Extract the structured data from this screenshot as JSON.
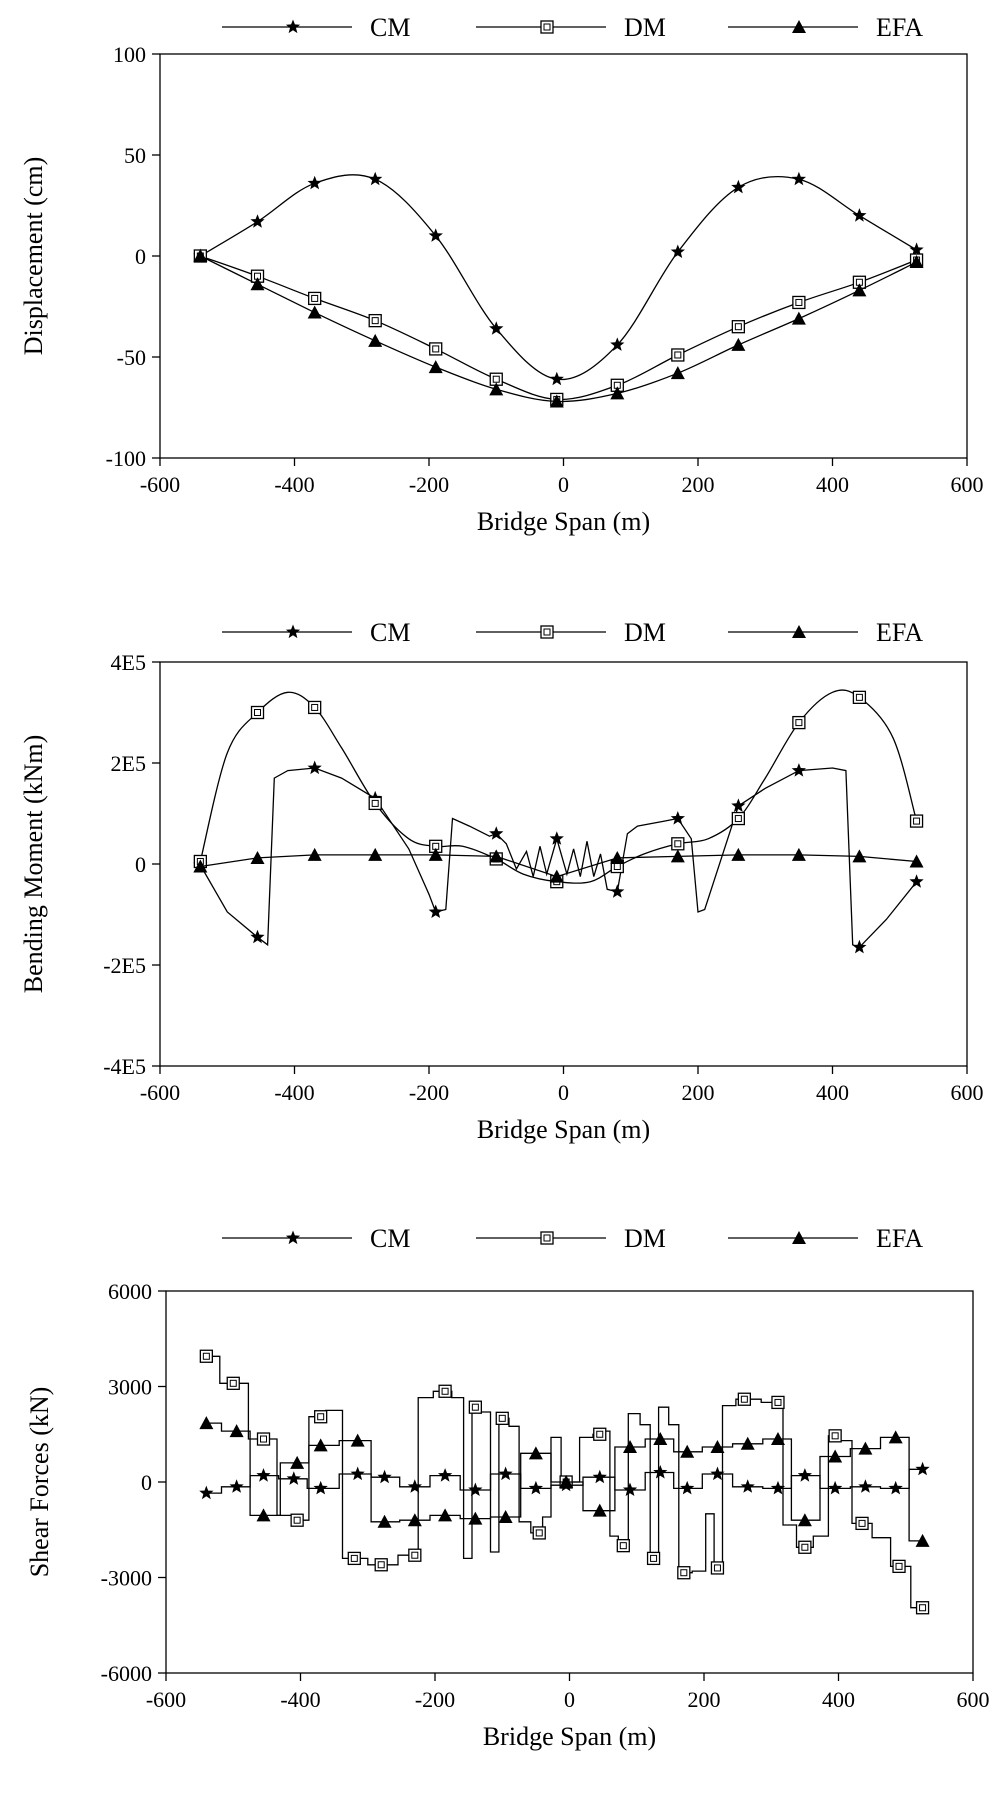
{
  "chart_data": [
    {
      "type": "line",
      "id": "displacement",
      "xlabel": "Bridge Span (m)",
      "ylabel": "Displacement (cm)",
      "xlim": [
        -600,
        600
      ],
      "ylim": [
        -100,
        100
      ],
      "xticks": [
        "-600",
        "-400",
        "-200",
        "0",
        "200",
        "400",
        "600"
      ],
      "yticks": [
        "100",
        "50",
        "0",
        "-50",
        "-100"
      ],
      "legend_position": "top",
      "series": [
        {
          "name": "CM",
          "marker": "star",
          "x": [
            -540,
            -455,
            -370,
            -280,
            -190,
            -100,
            -10,
            80,
            170,
            260,
            350,
            440,
            525
          ],
          "y": [
            0,
            17,
            36,
            38,
            10,
            -36,
            -61,
            -44,
            2,
            34,
            38,
            20,
            3
          ]
        },
        {
          "name": "DM",
          "marker": "square",
          "x": [
            -540,
            -455,
            -370,
            -280,
            -190,
            -100,
            -10,
            80,
            170,
            260,
            350,
            440,
            525
          ],
          "y": [
            0,
            -10,
            -21,
            -32,
            -46,
            -61,
            -71,
            -64,
            -49,
            -35,
            -23,
            -13,
            -2
          ]
        },
        {
          "name": "EFA",
          "marker": "triangle",
          "x": [
            -540,
            -455,
            -370,
            -280,
            -190,
            -100,
            -10,
            80,
            170,
            260,
            350,
            440,
            525
          ],
          "y": [
            0,
            -14,
            -28,
            -42,
            -55,
            -66,
            -72,
            -68,
            -58,
            -44,
            -31,
            -17,
            -3
          ]
        }
      ]
    },
    {
      "type": "line",
      "id": "bending-moment",
      "xlabel": "Bridge Span (m)",
      "ylabel": "Bending Moment (kNm)",
      "xlim": [
        -600,
        600
      ],
      "ylim": [
        -400000,
        400000
      ],
      "xticks": [
        "-600",
        "-400",
        "-200",
        "0",
        "200",
        "400",
        "600"
      ],
      "yticks": [
        "4E5",
        "2E5",
        "0",
        "-2E5",
        "-4E5"
      ],
      "legend_position": "top",
      "series": [
        {
          "name": "CM",
          "marker": "star",
          "x": [
            -540,
            -500,
            -455,
            -440,
            -430,
            -410,
            -370,
            -330,
            -280,
            -230,
            -200,
            -190,
            -175,
            -165,
            -140,
            -110,
            -100,
            -85,
            -70,
            -55,
            -45,
            -35,
            -25,
            -10,
            5,
            15,
            25,
            35,
            45,
            55,
            65,
            80,
            95,
            110,
            150,
            170,
            190,
            200,
            210,
            260,
            300,
            350,
            400,
            420,
            430,
            440,
            480,
            525
          ],
          "y": [
            -2000,
            -95000,
            -145000,
            -160000,
            170000,
            185000,
            190000,
            170000,
            130000,
            30000,
            -60000,
            -95000,
            -90000,
            90000,
            75000,
            55000,
            60000,
            40000,
            -10000,
            25000,
            -25000,
            35000,
            -20000,
            50000,
            -20000,
            30000,
            -25000,
            45000,
            -25000,
            20000,
            -50000,
            -55000,
            60000,
            75000,
            85000,
            90000,
            50000,
            -95000,
            -90000,
            115000,
            150000,
            185000,
            190000,
            185000,
            -160000,
            -165000,
            -110000,
            -35000
          ]
        },
        {
          "name": "DM",
          "marker": "square",
          "x": [
            -540,
            -500,
            -455,
            -410,
            -370,
            -330,
            -280,
            -230,
            -190,
            -150,
            -100,
            -60,
            -10,
            40,
            80,
            120,
            170,
            215,
            260,
            300,
            350,
            400,
            440,
            490,
            525
          ],
          "y": [
            5000,
            220000,
            300000,
            340000,
            310000,
            230000,
            120000,
            50000,
            35000,
            35000,
            10000,
            -20000,
            -35000,
            -35000,
            -5000,
            20000,
            40000,
            50000,
            90000,
            170000,
            280000,
            340000,
            330000,
            250000,
            85000
          ]
        },
        {
          "name": "EFA",
          "marker": "triangle",
          "x": [
            -540,
            -455,
            -370,
            -280,
            -190,
            -100,
            -10,
            80,
            170,
            260,
            350,
            440,
            525
          ],
          "y": [
            -5000,
            12000,
            18000,
            18000,
            18000,
            15000,
            -25000,
            12000,
            15000,
            18000,
            18000,
            15000,
            5000
          ]
        }
      ]
    },
    {
      "type": "line",
      "id": "shear-forces",
      "xlabel": "Bridge Span (m)",
      "ylabel": "Shear Forces (kN)",
      "xlim": [
        -600,
        600
      ],
      "ylim": [
        -6000,
        6000
      ],
      "xticks": [
        "-600",
        "-400",
        "-200",
        "0",
        "200",
        "400",
        "600"
      ],
      "yticks": [
        "6000",
        "3000",
        "0",
        "-3000",
        "-6000"
      ],
      "legend_position": "top",
      "step": true,
      "series": [
        {
          "name": "CM",
          "marker": "star",
          "x": [
            -540,
            -495,
            -455,
            -410,
            -370,
            -315,
            -275,
            -230,
            -185,
            -140,
            -95,
            -50,
            -5,
            45,
            90,
            135,
            175,
            220,
            265,
            310,
            350,
            395,
            440,
            485,
            525
          ],
          "y": [
            -350,
            -150,
            200,
            100,
            -200,
            250,
            150,
            -150,
            200,
            -250,
            250,
            -200,
            -100,
            150,
            -250,
            300,
            -200,
            250,
            -150,
            -200,
            200,
            -200,
            -150,
            -200,
            400
          ]
        },
        {
          "name": "DM",
          "marker": "square",
          "x": [
            -540,
            -500,
            -455,
            -415,
            -405,
            -370,
            -355,
            -320,
            -280,
            -230,
            -220,
            -185,
            -165,
            -150,
            -140,
            -125,
            -110,
            -100,
            -80,
            -70,
            -45,
            -35,
            -20,
            -5,
            5,
            25,
            45,
            55,
            65,
            80,
            95,
            115,
            125,
            140,
            155,
            170,
            195,
            210,
            220,
            235,
            260,
            310,
            325,
            350,
            375,
            395,
            405,
            435,
            465,
            490,
            525
          ],
          "y": [
            3950,
            3100,
            1350,
            -1050,
            -1200,
            2050,
            2250,
            -2400,
            -2600,
            -2300,
            2650,
            2850,
            2650,
            -2400,
            2350,
            2200,
            -2200,
            2000,
            1750,
            -1250,
            -1600,
            -1100,
            1400,
            0,
            0,
            1400,
            1500,
            1600,
            -1700,
            -2000,
            2150,
            1800,
            -2400,
            2350,
            1800,
            -2850,
            -2800,
            -1000,
            -2700,
            2400,
            2600,
            2500,
            -1350,
            -2050,
            -1700,
            1450,
            1300,
            -1300,
            -1750,
            -2650,
            -3950
          ]
        },
        {
          "name": "EFA",
          "marker": "triangle",
          "x": [
            -540,
            -495,
            -455,
            -405,
            -370,
            -315,
            -275,
            -230,
            -185,
            -140,
            -95,
            -50,
            -5,
            45,
            90,
            135,
            175,
            220,
            265,
            310,
            350,
            395,
            440,
            485,
            525
          ],
          "y": [
            1850,
            1600,
            -1050,
            600,
            1150,
            1300,
            -1250,
            -1200,
            -1050,
            -1150,
            -1100,
            900,
            0,
            -900,
            1100,
            1350,
            950,
            1100,
            1200,
            1350,
            -1200,
            800,
            1050,
            1400,
            -1850
          ]
        }
      ]
    }
  ]
}
